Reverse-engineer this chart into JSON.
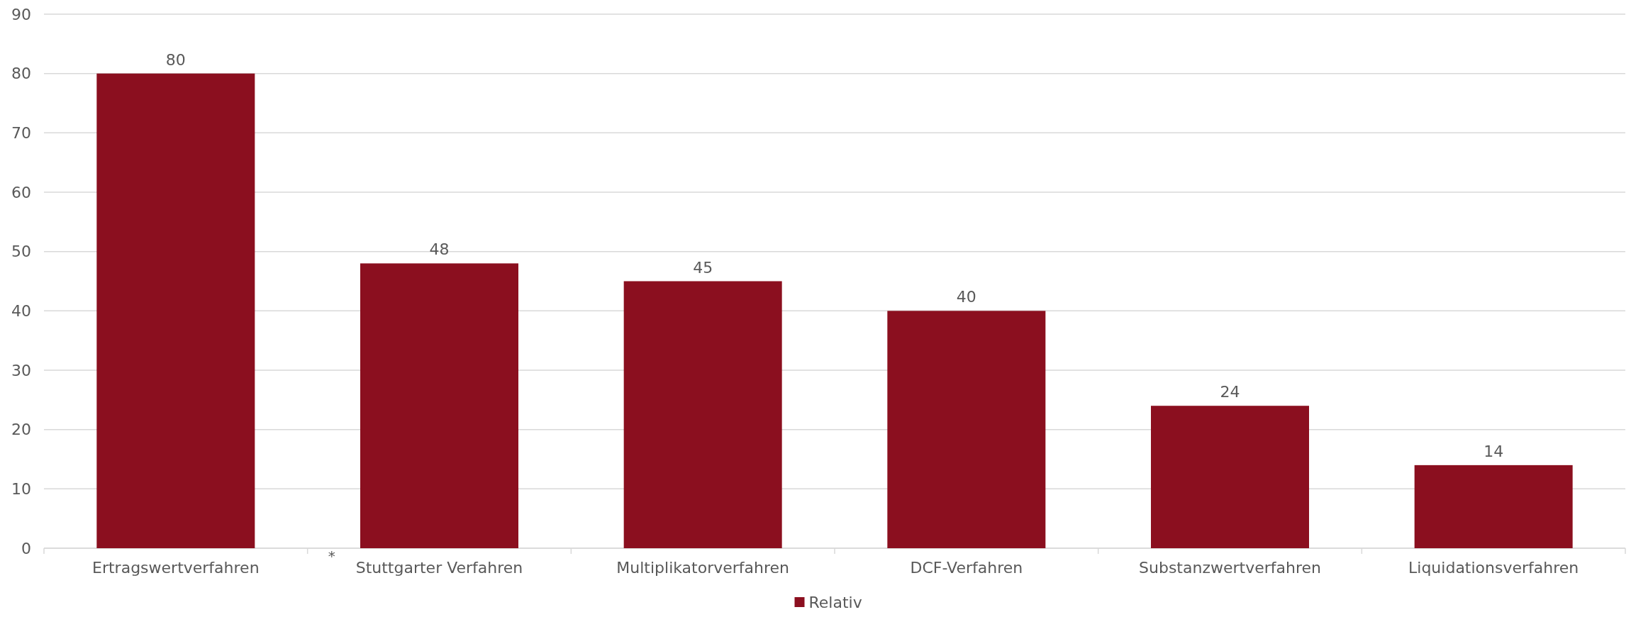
{
  "chart_data": {
    "type": "bar",
    "categories": [
      "Ertragswertverfahren",
      "Stuttgarter Verfahren",
      "Multiplikatorverfahren",
      "DCF-Verfahren",
      "Substanzwertverfahren",
      "Liquidationsverfahren"
    ],
    "series": [
      {
        "name": "Relativ",
        "color": "#8b0f1f",
        "values": [
          80,
          48,
          45,
          40,
          24,
          14
        ]
      }
    ],
    "ylim": [
      0,
      90
    ],
    "yticks": [
      0,
      10,
      20,
      30,
      40,
      50,
      60,
      70,
      80,
      90
    ],
    "grid": "y",
    "legend": "bottom",
    "data_labels": true,
    "annotations": [
      "*"
    ]
  }
}
